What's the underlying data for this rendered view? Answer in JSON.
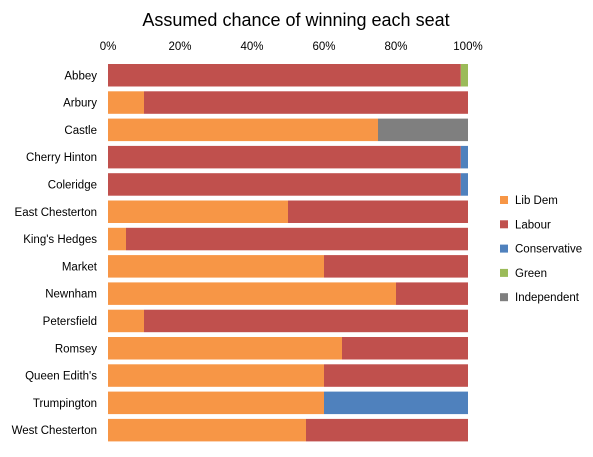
{
  "chart_data": {
    "type": "bar",
    "orientation": "horizontal",
    "stacked": true,
    "title": "Assumed chance of winning each seat",
    "xlabel": "",
    "ylabel": "",
    "xlim": [
      0,
      100
    ],
    "x_ticks": [
      "0%",
      "20%",
      "40%",
      "60%",
      "80%",
      "100%"
    ],
    "x_axis_position": "top",
    "grid": false,
    "legend_position": "right",
    "categories": [
      "Abbey",
      "Arbury",
      "Castle",
      "Cherry Hinton",
      "Coleridge",
      "East Chesterton",
      "King's Hedges",
      "Market",
      "Newnham",
      "Petersfield",
      "Romsey",
      "Queen Edith's",
      "Trumpington",
      "West Chesterton"
    ],
    "series": [
      {
        "name": "Lib Dem",
        "color": "#F79646",
        "values": [
          0,
          10,
          75,
          0,
          0,
          50,
          5,
          60,
          80,
          10,
          65,
          60,
          60,
          55
        ]
      },
      {
        "name": "Labour",
        "color": "#C0504D",
        "values": [
          98,
          90,
          0,
          98,
          98,
          50,
          95,
          40,
          20,
          90,
          35,
          40,
          0,
          45
        ]
      },
      {
        "name": "Conservative",
        "color": "#4F81BD",
        "values": [
          0,
          0,
          0,
          2,
          2,
          0,
          0,
          0,
          0,
          0,
          0,
          0,
          40,
          0
        ]
      },
      {
        "name": "Green",
        "color": "#9BBB59",
        "values": [
          2,
          0,
          0,
          0,
          0,
          0,
          0,
          0,
          0,
          0,
          0,
          0,
          0,
          0
        ]
      },
      {
        "name": "Independent",
        "color": "#7F7F7F",
        "values": [
          0,
          0,
          25,
          0,
          0,
          0,
          0,
          0,
          0,
          0,
          0,
          0,
          0,
          0
        ]
      }
    ]
  }
}
